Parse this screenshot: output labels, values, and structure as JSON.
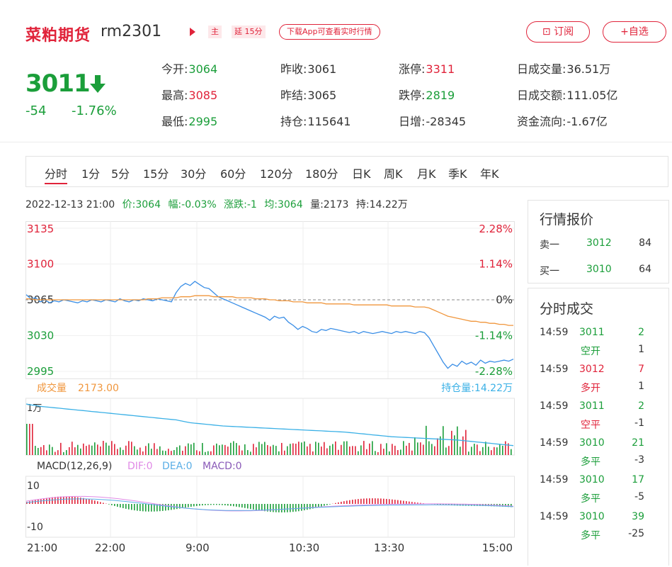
{
  "header": {
    "name": "菜粕期货",
    "code": "rm2301",
    "tag_main": "主",
    "tag_delay": "延 15分",
    "app_prompt": "下载App可查看实时行情",
    "subscribe_label": "⊡ 订阅",
    "add_label": "+自选"
  },
  "quote": {
    "price": "3011",
    "change": "-54",
    "change_pct": "-1.76%",
    "stats": [
      {
        "label": "今开:",
        "value": "3064",
        "color": "#1b9e3a"
      },
      {
        "label": "昨收:",
        "value": "3061",
        "color": "#333333"
      },
      {
        "label": "涨停:",
        "value": "3311",
        "color": "#e0233a"
      },
      {
        "label": "日成交量:",
        "value": "36.51万",
        "color": "#333333"
      },
      {
        "label": "最高:",
        "value": "3085",
        "color": "#e0233a"
      },
      {
        "label": "昨结:",
        "value": "3065",
        "color": "#333333"
      },
      {
        "label": "跌停:",
        "value": "2819",
        "color": "#1b9e3a"
      },
      {
        "label": "日成交额:",
        "value": "111.05亿",
        "color": "#333333"
      },
      {
        "label": "最低:",
        "value": "2995",
        "color": "#1b9e3a"
      },
      {
        "label": "持仓:",
        "value": "115641",
        "color": "#333333"
      },
      {
        "label": "日增:",
        "value": "-28345",
        "color": "#333333"
      },
      {
        "label": "资金流向:",
        "value": "-1.67亿",
        "color": "#333333"
      }
    ]
  },
  "tabs": [
    "分时",
    "1分",
    "5分",
    "15分",
    "30分",
    "60分",
    "120分",
    "180分",
    "日K",
    "周K",
    "月K",
    "季K",
    "年K"
  ],
  "active_tab": "分时",
  "info_bar": {
    "datetime": "2022-12-13 21:00",
    "price": "价:3064",
    "amplitude": "幅:-0.03%",
    "change": "涨跌:-1",
    "avg": "均:3064",
    "volume": "量:2173",
    "hold": "持:14.22万"
  },
  "chart_data": {
    "type": "line",
    "y_left_ticks": [
      "3135",
      "3100",
      "3065",
      "3030",
      "2995"
    ],
    "y_right_ticks": [
      "2.28%",
      "1.14%",
      "0%",
      "-1.14%",
      "-2.28%"
    ],
    "ylim": [
      2995,
      3135
    ],
    "base": 3065,
    "x_ticks": [
      "21:00",
      "22:00",
      "9:00",
      "10:30",
      "13:30",
      "15:00"
    ],
    "volume_label": "成交量",
    "volume_value": "2173.00",
    "hold_label": "持仓量:14.22万",
    "volume_axis_label": "1万",
    "macd_label": "MACD(12,26,9)",
    "dif_label": "DIF:0",
    "dea_label": "DEA:0",
    "macd_value_label": "MACD:0",
    "macd_ticks": [
      "10",
      "-10"
    ],
    "series": [
      {
        "name": "价",
        "color": "#3a8ee6",
        "values": [
          3070,
          3066,
          3067,
          3063,
          3065,
          3062,
          3064,
          3063,
          3065,
          3064,
          3063,
          3062,
          3064,
          3063,
          3065,
          3064,
          3063,
          3065,
          3064,
          3063,
          3066,
          3064,
          3063,
          3065,
          3064,
          3066,
          3065,
          3064,
          3066,
          3065,
          3064,
          3063,
          3072,
          3078,
          3081,
          3079,
          3083,
          3080,
          3077,
          3076,
          3072,
          3068,
          3066,
          3064,
          3062,
          3060,
          3058,
          3056,
          3054,
          3052,
          3050,
          3048,
          3045,
          3049,
          3047,
          3048,
          3043,
          3040,
          3036,
          3039,
          3037,
          3034,
          3033,
          3036,
          3035,
          3037,
          3036,
          3035,
          3034,
          3033,
          3034,
          3032,
          3034,
          3033,
          3032,
          3033,
          3034,
          3033,
          3032,
          3034,
          3033,
          3034,
          3033,
          3032,
          3034,
          3033,
          3028,
          3020,
          3012,
          3004,
          2998,
          3002,
          3000,
          3005,
          3002,
          3004,
          3001,
          3006,
          3003,
          3005,
          3004,
          3005,
          3006,
          3005,
          3007
        ]
      },
      {
        "name": "均",
        "color": "#f0963c",
        "values": [
          3066,
          3066,
          3065,
          3065,
          3065,
          3065,
          3065,
          3065,
          3065,
          3065,
          3065,
          3065,
          3065,
          3065,
          3065,
          3065,
          3065,
          3065,
          3065,
          3065,
          3065,
          3065,
          3065,
          3065,
          3065,
          3065,
          3066,
          3066,
          3066,
          3067,
          3067,
          3067,
          3067,
          3068,
          3068,
          3068,
          3069,
          3069,
          3069,
          3069,
          3068,
          3068,
          3068,
          3068,
          3068,
          3067,
          3067,
          3067,
          3067,
          3066,
          3066,
          3066,
          3065,
          3065,
          3064,
          3064,
          3064,
          3063,
          3063,
          3063,
          3062,
          3062,
          3062,
          3062,
          3061,
          3061,
          3061,
          3061,
          3061,
          3061,
          3060,
          3060,
          3060,
          3060,
          3060,
          3060,
          3060,
          3060,
          3059,
          3059,
          3059,
          3059,
          3059,
          3058,
          3058,
          3058,
          3057,
          3055,
          3053,
          3051,
          3049,
          3048,
          3047,
          3046,
          3045,
          3044,
          3044,
          3043,
          3043,
          3042,
          3042,
          3041,
          3041,
          3040,
          3040
        ]
      }
    ],
    "hold_series": [
      10,
      9.8,
      9.7,
      9.5,
      9.4,
      9.3,
      9.2,
      9.1,
      9.0,
      8.9,
      8.8,
      8.7,
      8.6,
      8.5,
      8.4,
      8.3,
      8.2,
      8.1,
      8.0,
      7.9,
      7.8,
      7.7,
      7.6,
      7.5,
      7.4,
      7.3,
      7.2,
      7.1,
      7.0,
      6.9,
      6.8,
      6.7,
      6.6,
      6.4,
      6.2,
      6.0,
      5.9,
      5.8,
      5.7,
      5.6,
      5.5,
      5.4,
      5.3,
      5.25,
      5.2,
      5.15,
      5.1,
      5.05,
      5.0,
      4.95,
      4.9,
      4.85,
      4.8,
      4.75,
      4.7,
      4.65,
      4.6,
      4.55,
      4.5,
      4.45,
      4.4,
      4.35,
      4.3,
      4.25,
      4.2,
      4.15,
      4.1,
      4.05,
      4.0,
      3.9,
      3.8,
      3.7,
      3.6,
      3.5,
      3.4,
      3.3,
      3.2,
      3.1,
      3.0,
      2.95,
      2.9,
      2.85,
      2.8,
      2.75,
      2.7,
      2.65,
      2.6,
      2.55,
      2.5,
      2.45,
      2.4,
      2.35,
      2.3,
      2.2,
      2.1,
      2.0,
      1.9,
      1.8,
      1.7,
      1.6,
      1.5,
      1.4,
      1.3,
      1.2,
      1.1
    ]
  },
  "panel": {
    "quote_title": "行情报价",
    "sell1": {
      "label": "卖一",
      "price": "3012",
      "vol": "84"
    },
    "buy1": {
      "label": "买一",
      "price": "3010",
      "vol": "64"
    },
    "trades_title": "分时成交",
    "trades": [
      {
        "time": "14:59",
        "price": "3011",
        "vol": "2",
        "type": "空开",
        "chg": "1",
        "pcolor": "#1b9e3a",
        "tcolor": "#1b9e3a"
      },
      {
        "time": "14:59",
        "price": "3012",
        "vol": "7",
        "type": "多开",
        "chg": "1",
        "pcolor": "#e0233a",
        "tcolor": "#e0233a"
      },
      {
        "time": "14:59",
        "price": "3011",
        "vol": "2",
        "type": "空平",
        "chg": "-1",
        "pcolor": "#1b9e3a",
        "tcolor": "#e0233a"
      },
      {
        "time": "14:59",
        "price": "3010",
        "vol": "21",
        "type": "多平",
        "chg": "-3",
        "pcolor": "#1b9e3a",
        "tcolor": "#1b9e3a"
      },
      {
        "time": "14:59",
        "price": "3010",
        "vol": "17",
        "type": "多平",
        "chg": "-5",
        "pcolor": "#1b9e3a",
        "tcolor": "#1b9e3a"
      },
      {
        "time": "14:59",
        "price": "3010",
        "vol": "39",
        "type": "多平",
        "chg": "-25",
        "pcolor": "#1b9e3a",
        "tcolor": "#1b9e3a"
      }
    ]
  }
}
